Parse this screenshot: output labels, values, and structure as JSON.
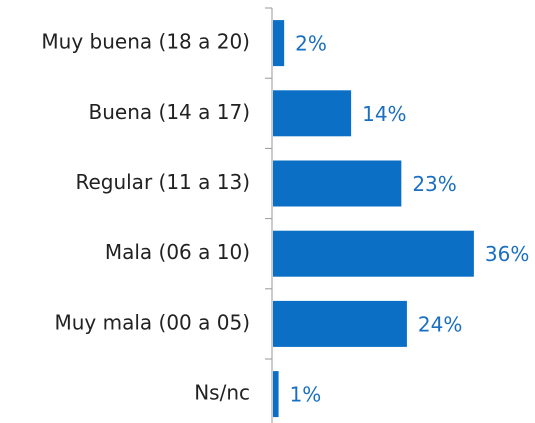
{
  "chart_data": {
    "type": "bar",
    "orientation": "horizontal",
    "categories": [
      "Muy buena (18 a 20)",
      "Buena (14 a 17)",
      "Regular (11 a 13)",
      "Mala (06 a 10)",
      "Muy mala (00 a 05)",
      "Ns/nc"
    ],
    "values": [
      2,
      14,
      23,
      36,
      24,
      1
    ],
    "value_labels": [
      "2%",
      "14%",
      "23%",
      "36%",
      "24%",
      "1%"
    ],
    "color": "#0b6fc6"
  }
}
